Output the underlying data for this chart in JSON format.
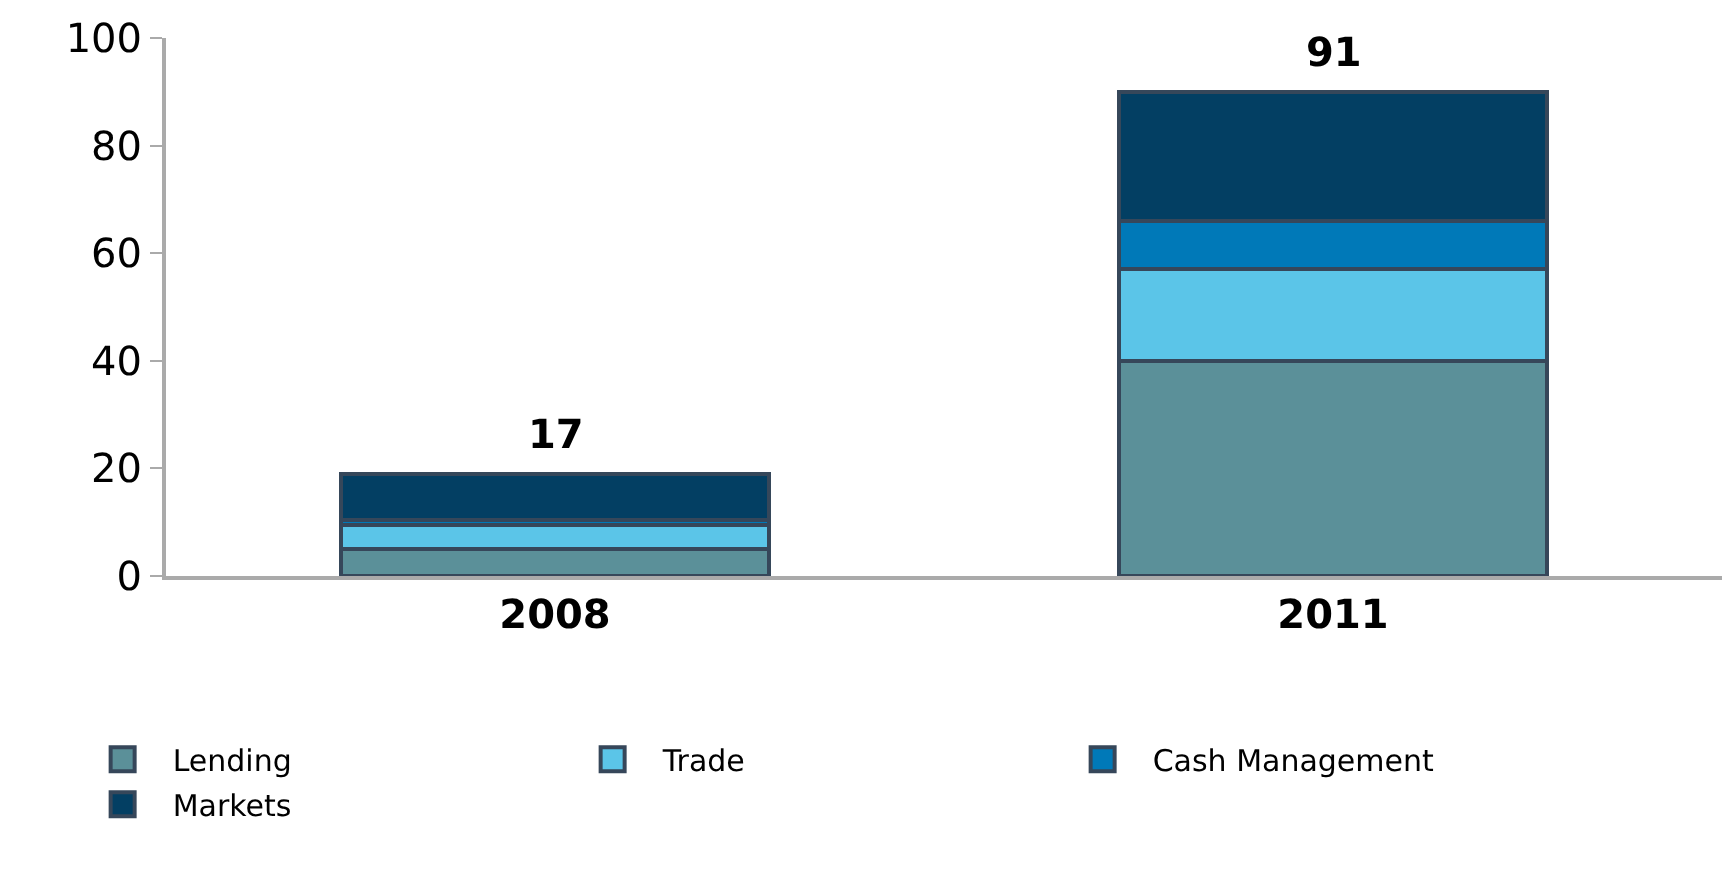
{
  "chart_data": {
    "type": "bar",
    "stacked": true,
    "categories": [
      "2008",
      "2011"
    ],
    "series": [
      {
        "name": "Lending",
        "color": "#5b9099",
        "values": [
          5,
          40
        ]
      },
      {
        "name": "Trade",
        "color": "#5bc5e8",
        "values": [
          4.5,
          17
        ]
      },
      {
        "name": "Cash Management",
        "color": "#0079b8",
        "values": [
          1,
          9
        ]
      },
      {
        "name": "Markets",
        "color": "#033f63",
        "values": [
          8.5,
          24
        ]
      }
    ],
    "totals": [
      "17",
      "91"
    ],
    "ylim": [
      0,
      100
    ],
    "yticks": [
      0,
      20,
      40,
      60,
      80,
      100
    ],
    "grid": false,
    "legend": "bottom left"
  }
}
